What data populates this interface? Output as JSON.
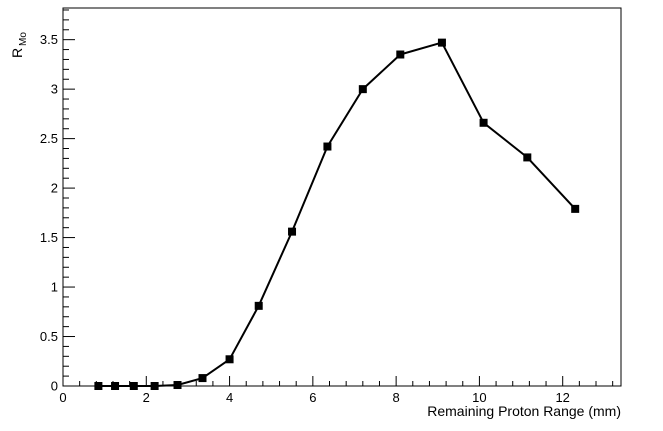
{
  "chart_data": {
    "type": "line",
    "title": "",
    "xlabel": "Remaining Proton Range (mm)",
    "ylabel_main": "R",
    "ylabel_sub": "Mo",
    "xlim": [
      0,
      13.4
    ],
    "ylim": [
      0,
      3.82
    ],
    "x_ticks": [
      "0",
      "2",
      "4",
      "6",
      "8",
      "10",
      "12"
    ],
    "y_ticks": [
      "0",
      "0.5",
      "1",
      "1.5",
      "2",
      "2.5",
      "3",
      "3.5"
    ],
    "grid": false,
    "legend": "none",
    "series": [
      {
        "x": [
          0.85,
          1.25,
          1.7,
          2.2,
          2.75,
          3.35,
          4.0,
          4.7,
          5.5,
          6.35,
          7.2,
          8.1,
          9.1,
          10.1,
          11.15,
          12.3
        ],
        "y": [
          0.0,
          0.0,
          0.0,
          0.0,
          0.01,
          0.08,
          0.27,
          0.81,
          1.56,
          2.42,
          3.0,
          3.35,
          3.47,
          2.66,
          2.31,
          1.79
        ]
      }
    ],
    "line_color": "#000000",
    "marker": "square"
  }
}
